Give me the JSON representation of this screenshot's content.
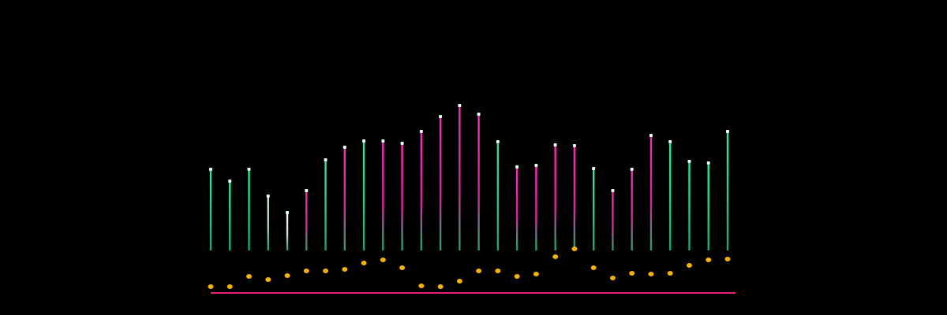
{
  "chart_data": {
    "type": "dotted-lines",
    "values": [
      159,
      144,
      159,
      125,
      104,
      132,
      171,
      187,
      195,
      195,
      192,
      207,
      226,
      240,
      229,
      194,
      162,
      164,
      190,
      189,
      160,
      132,
      159,
      202,
      194,
      169,
      167,
      207
    ],
    "dots": [
      8,
      8,
      21,
      17,
      22,
      28,
      28,
      30,
      38,
      42,
      32,
      9,
      8,
      15,
      28,
      28,
      21,
      24,
      46,
      56,
      32,
      19,
      25,
      24,
      25,
      35,
      42,
      43
    ],
    "colors": [
      "#2ee89a",
      "#2ee89a",
      "#2ee89a",
      "#c8f0e0",
      "#ffffff",
      "#ff2ab8",
      "#2ee89a",
      "#ff2ab8",
      "#2ee89a",
      "#ff2ab8",
      "#ff2ab8",
      "#ff2ab8",
      "#ff2ab8",
      "#ff2ab8",
      "#ff2ab8",
      "#2ee89a",
      "#ff2ab8",
      "#ff2ab8",
      "#ff2ab8",
      "#ff2ab8",
      "#2ee89a",
      "#ff2ab8",
      "#ff2ab8",
      "#ff2ab8",
      "#2ee89a",
      "#2ee89a",
      "#2ee89a",
      "#2ee89a"
    ],
    "dot_color": "#f5b400",
    "baseline_color": "#e8207a",
    "ylim": [
      0,
      240
    ]
  }
}
